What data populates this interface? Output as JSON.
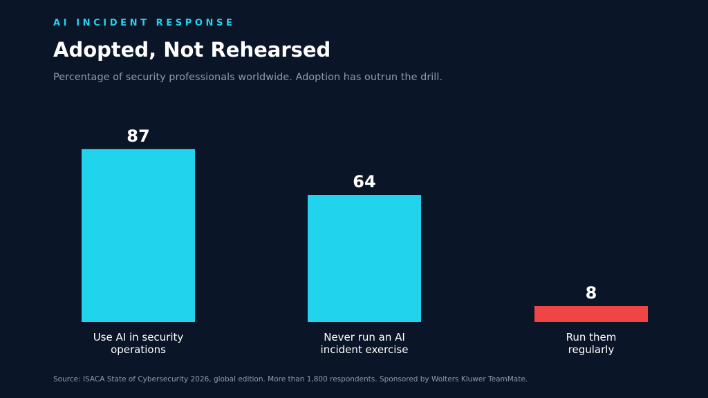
{
  "header": {
    "kicker": "AI INCIDENT RESPONSE",
    "title": "Adopted, Not Rehearsed",
    "subtitle": "Percentage of security professionals worldwide. Adoption has outrun the drill."
  },
  "footer": {
    "source": "Source: ISACA State of Cybersecurity 2026, global edition. More than 1,800 respondents. Sponsored by Wolters Kluwer TeamMate."
  },
  "colors": {
    "background": "#0b1528",
    "accent": "#22d3ee",
    "highlight": "#f04545"
  },
  "chart_data": {
    "type": "bar",
    "categories": [
      [
        "Use AI in security",
        "operations"
      ],
      [
        "Never run an AI",
        "incident exercise"
      ],
      [
        "Run them",
        "regularly"
      ]
    ],
    "values": [
      87,
      64,
      8
    ],
    "bar_colors": [
      "#22d3ee",
      "#22d3ee",
      "#f04545"
    ],
    "title": "Adopted, Not Rehearsed",
    "xlabel": "",
    "ylabel": "",
    "ylim": [
      0,
      100
    ],
    "grid": false,
    "legend": "none"
  }
}
